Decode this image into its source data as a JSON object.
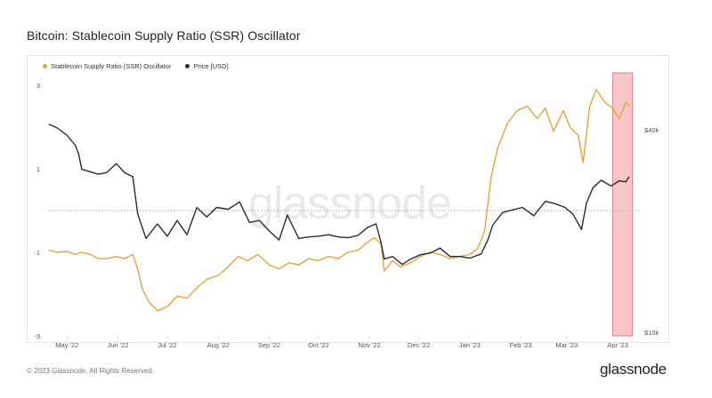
{
  "title": "Bitcoin: Stablecoin Supply Ratio (SSR) Oscillator",
  "footer": "© 2023 Glassnode. All Rights Reserved.",
  "logo": "glassnode",
  "watermark": "glassnode",
  "colors": {
    "ssr": "#e8a23a",
    "price": "#2b2b2b",
    "highlight": "#f7c6c9",
    "highlight_border": "#e08088",
    "grid": "#eeeeee"
  },
  "chart_data": {
    "type": "line",
    "title": "Bitcoin: Stablecoin Supply Ratio (SSR) Oscillator",
    "legend_position": "top-left",
    "x_ticks": [
      "May '22",
      "Jun '22",
      "Jul '22",
      "Aug '22",
      "Sep '22",
      "Oct '22",
      "Nov '22",
      "Dec '22",
      "Jan '23",
      "Feb '23",
      "Mar '23",
      "Apr '23"
    ],
    "y_left": {
      "ticks": [
        "3",
        "1",
        "-1",
        "-3"
      ],
      "ylim": [
        -3,
        3.3
      ]
    },
    "y_right": {
      "ticks": [
        "$40k",
        "$10k"
      ],
      "scale": "log"
    },
    "zero_line": true,
    "highlight_region": [
      "2023-03-29",
      "2023-04-10"
    ],
    "series": [
      {
        "name": "Stablecoin Supply Ratio (SSR) Oscillator",
        "axis": "left",
        "points": [
          [
            "2022-04-20",
            -0.95
          ],
          [
            "2022-04-25",
            -1.0
          ],
          [
            "2022-05-01",
            -0.98
          ],
          [
            "2022-05-06",
            -1.05
          ],
          [
            "2022-05-10",
            -1.0
          ],
          [
            "2022-05-15",
            -1.05
          ],
          [
            "2022-05-20",
            -1.15
          ],
          [
            "2022-05-25",
            -1.15
          ],
          [
            "2022-05-31",
            -1.1
          ],
          [
            "2022-06-05",
            -1.15
          ],
          [
            "2022-06-10",
            -1.05
          ],
          [
            "2022-06-13",
            -1.4
          ],
          [
            "2022-06-16",
            -1.9
          ],
          [
            "2022-06-20",
            -2.2
          ],
          [
            "2022-06-25",
            -2.4
          ],
          [
            "2022-07-01",
            -2.3
          ],
          [
            "2022-07-07",
            -2.05
          ],
          [
            "2022-07-13",
            -2.1
          ],
          [
            "2022-07-19",
            -1.85
          ],
          [
            "2022-07-25",
            -1.65
          ],
          [
            "2022-08-01",
            -1.55
          ],
          [
            "2022-08-07",
            -1.35
          ],
          [
            "2022-08-13",
            -1.1
          ],
          [
            "2022-08-19",
            -1.2
          ],
          [
            "2022-08-25",
            -1.05
          ],
          [
            "2022-09-01",
            -1.3
          ],
          [
            "2022-09-07",
            -1.4
          ],
          [
            "2022-09-13",
            -1.25
          ],
          [
            "2022-09-19",
            -1.3
          ],
          [
            "2022-09-25",
            -1.15
          ],
          [
            "2022-10-01",
            -1.2
          ],
          [
            "2022-10-07",
            -1.1
          ],
          [
            "2022-10-13",
            -1.15
          ],
          [
            "2022-10-19",
            -1.0
          ],
          [
            "2022-10-25",
            -0.95
          ],
          [
            "2022-10-31",
            -0.75
          ],
          [
            "2022-11-04",
            -0.65
          ],
          [
            "2022-11-08",
            -0.8
          ],
          [
            "2022-11-10",
            -1.45
          ],
          [
            "2022-11-15",
            -1.2
          ],
          [
            "2022-11-20",
            -1.35
          ],
          [
            "2022-11-26",
            -1.25
          ],
          [
            "2022-12-02",
            -1.1
          ],
          [
            "2022-12-08",
            -1.0
          ],
          [
            "2022-12-14",
            -1.05
          ],
          [
            "2022-12-20",
            -1.15
          ],
          [
            "2022-12-26",
            -1.1
          ],
          [
            "2023-01-01",
            -1.05
          ],
          [
            "2023-01-06",
            -0.9
          ],
          [
            "2023-01-10",
            -0.5
          ],
          [
            "2023-01-14",
            0.8
          ],
          [
            "2023-01-18",
            1.5
          ],
          [
            "2023-01-24",
            2.1
          ],
          [
            "2023-01-30",
            2.4
          ],
          [
            "2023-02-05",
            2.5
          ],
          [
            "2023-02-11",
            2.2
          ],
          [
            "2023-02-16",
            2.45
          ],
          [
            "2023-02-21",
            1.9
          ],
          [
            "2023-02-27",
            2.4
          ],
          [
            "2023-03-03",
            2.0
          ],
          [
            "2023-03-08",
            1.8
          ],
          [
            "2023-03-11",
            1.15
          ],
          [
            "2023-03-15",
            2.5
          ],
          [
            "2023-03-19",
            2.9
          ],
          [
            "2023-03-24",
            2.6
          ],
          [
            "2023-03-29",
            2.45
          ],
          [
            "2023-04-02",
            2.2
          ],
          [
            "2023-04-06",
            2.6
          ],
          [
            "2023-04-08",
            2.5
          ]
        ]
      },
      {
        "name": "Price [USD]",
        "axis": "right",
        "points": [
          [
            "2022-04-20",
            41500
          ],
          [
            "2022-04-25",
            40500
          ],
          [
            "2022-05-01",
            38500
          ],
          [
            "2022-05-06",
            36000
          ],
          [
            "2022-05-08",
            34000
          ],
          [
            "2022-05-10",
            30500
          ],
          [
            "2022-05-15",
            30000
          ],
          [
            "2022-05-20",
            29500
          ],
          [
            "2022-05-25",
            29800
          ],
          [
            "2022-05-31",
            31700
          ],
          [
            "2022-06-05",
            29800
          ],
          [
            "2022-06-10",
            29000
          ],
          [
            "2022-06-13",
            22500
          ],
          [
            "2022-06-18",
            19000
          ],
          [
            "2022-06-25",
            21000
          ],
          [
            "2022-07-01",
            19300
          ],
          [
            "2022-07-07",
            21500
          ],
          [
            "2022-07-13",
            19500
          ],
          [
            "2022-07-19",
            23500
          ],
          [
            "2022-07-25",
            22000
          ],
          [
            "2022-07-31",
            23500
          ],
          [
            "2022-08-07",
            23200
          ],
          [
            "2022-08-14",
            24400
          ],
          [
            "2022-08-20",
            21200
          ],
          [
            "2022-08-26",
            21500
          ],
          [
            "2022-09-01",
            20000
          ],
          [
            "2022-09-07",
            18800
          ],
          [
            "2022-09-12",
            22300
          ],
          [
            "2022-09-19",
            19000
          ],
          [
            "2022-09-25",
            19200
          ],
          [
            "2022-10-01",
            19300
          ],
          [
            "2022-10-07",
            19500
          ],
          [
            "2022-10-13",
            19200
          ],
          [
            "2022-10-19",
            19100
          ],
          [
            "2022-10-25",
            19400
          ],
          [
            "2022-10-31",
            20500
          ],
          [
            "2022-11-05",
            21000
          ],
          [
            "2022-11-08",
            18500
          ],
          [
            "2022-11-10",
            16500
          ],
          [
            "2022-11-15",
            16800
          ],
          [
            "2022-11-21",
            15900
          ],
          [
            "2022-11-26",
            16500
          ],
          [
            "2022-12-02",
            17000
          ],
          [
            "2022-12-08",
            17200
          ],
          [
            "2022-12-14",
            17800
          ],
          [
            "2022-12-20",
            16800
          ],
          [
            "2022-12-26",
            16800
          ],
          [
            "2023-01-01",
            16600
          ],
          [
            "2023-01-08",
            17100
          ],
          [
            "2023-01-12",
            18800
          ],
          [
            "2023-01-15",
            20800
          ],
          [
            "2023-01-21",
            22700
          ],
          [
            "2023-01-27",
            23100
          ],
          [
            "2023-02-02",
            23500
          ],
          [
            "2023-02-09",
            22200
          ],
          [
            "2023-02-16",
            24500
          ],
          [
            "2023-02-22",
            24100
          ],
          [
            "2023-02-28",
            23500
          ],
          [
            "2023-03-05",
            22400
          ],
          [
            "2023-03-10",
            20200
          ],
          [
            "2023-03-13",
            24200
          ],
          [
            "2023-03-17",
            26900
          ],
          [
            "2023-03-22",
            28300
          ],
          [
            "2023-03-28",
            27200
          ],
          [
            "2023-04-02",
            28200
          ],
          [
            "2023-04-06",
            28000
          ],
          [
            "2023-04-08",
            29000
          ]
        ]
      }
    ]
  }
}
